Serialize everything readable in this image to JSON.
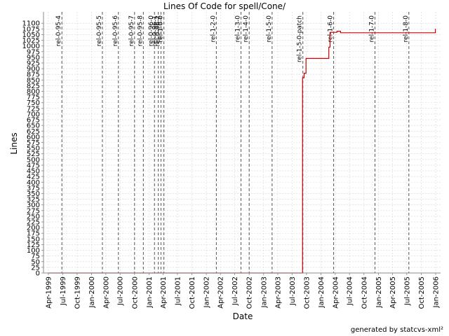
{
  "chart_data": {
    "type": "line",
    "title": "Lines Of Code for spell/Cone/",
    "xlabel": "Date",
    "ylabel": "Lines",
    "footer": "generated by statcvs-xml²",
    "xlim": [
      "1999-03-01",
      "2006-02-01"
    ],
    "ylim": [
      0,
      1150
    ],
    "y_ticks": [
      0,
      25,
      50,
      75,
      100,
      125,
      150,
      175,
      200,
      225,
      250,
      275,
      300,
      325,
      350,
      375,
      400,
      425,
      450,
      475,
      500,
      525,
      550,
      575,
      600,
      625,
      650,
      675,
      700,
      725,
      750,
      775,
      800,
      825,
      850,
      875,
      900,
      925,
      950,
      975,
      1000,
      1025,
      1050,
      1075,
      1100
    ],
    "x_ticks": [
      {
        "date": "1999-04-01",
        "label": "Apr-1999"
      },
      {
        "date": "1999-07-01",
        "label": "Jul-1999"
      },
      {
        "date": "1999-10-01",
        "label": "Oct-1999"
      },
      {
        "date": "2000-01-01",
        "label": "Jan-2000"
      },
      {
        "date": "2000-04-01",
        "label": "Apr-2000"
      },
      {
        "date": "2000-07-01",
        "label": "Jul-2000"
      },
      {
        "date": "2000-10-01",
        "label": "Oct-2000"
      },
      {
        "date": "2001-01-01",
        "label": "Jan-2001"
      },
      {
        "date": "2001-04-01",
        "label": "Apr-2001"
      },
      {
        "date": "2001-07-01",
        "label": "Jul-2001"
      },
      {
        "date": "2001-10-01",
        "label": "Oct-2001"
      },
      {
        "date": "2002-01-01",
        "label": "Jan-2002"
      },
      {
        "date": "2002-04-01",
        "label": "Apr-2002"
      },
      {
        "date": "2002-07-01",
        "label": "Jul-2002"
      },
      {
        "date": "2002-10-01",
        "label": "Oct-2002"
      },
      {
        "date": "2003-01-01",
        "label": "Jan-2003"
      },
      {
        "date": "2003-04-01",
        "label": "Apr-2003"
      },
      {
        "date": "2003-07-01",
        "label": "Jul-2003"
      },
      {
        "date": "2003-10-01",
        "label": "Oct-2003"
      },
      {
        "date": "2004-01-01",
        "label": "Jan-2004"
      },
      {
        "date": "2004-04-01",
        "label": "Apr-2004"
      },
      {
        "date": "2004-07-01",
        "label": "Jul-2004"
      },
      {
        "date": "2004-10-01",
        "label": "Oct-2004"
      },
      {
        "date": "2005-01-01",
        "label": "Jan-2005"
      },
      {
        "date": "2005-04-01",
        "label": "Apr-2005"
      },
      {
        "date": "2005-07-01",
        "label": "Jul-2005"
      },
      {
        "date": "2005-10-01",
        "label": "Oct-2005"
      },
      {
        "date": "2006-01-01",
        "label": "Jan-2006"
      }
    ],
    "markers": [
      {
        "date": "1999-06-26",
        "label": "rel-0-95-4"
      },
      {
        "date": "2000-03-10",
        "label": "rel-0-95-5"
      },
      {
        "date": "2000-06-20",
        "label": "rel-0-95-6"
      },
      {
        "date": "2000-10-01",
        "label": "rel-0-95-7"
      },
      {
        "date": "2000-11-26",
        "label": "rel-0-95-8"
      },
      {
        "date": "2001-02-05",
        "label": "rel-0-96-0"
      },
      {
        "date": "2001-03-01",
        "label": "rel-0-96-1"
      },
      {
        "date": "2001-03-18",
        "label": "rel-0-96-2"
      },
      {
        "date": "2001-04-06",
        "label": "rel-1-0-0"
      },
      {
        "date": "2002-03-06",
        "label": "rel-1-2-0"
      },
      {
        "date": "2002-08-10",
        "label": "rel-1-3-0"
      },
      {
        "date": "2002-10-01",
        "label": "rel-1-4-0"
      },
      {
        "date": "2003-02-24",
        "label": "rel-1-5-0"
      },
      {
        "date": "2003-09-08",
        "label": "rel-1-5-0-patch"
      },
      {
        "date": "2004-03-22",
        "label": "rel-1-6-0"
      },
      {
        "date": "2004-12-10",
        "label": "rel-1-7-0"
      },
      {
        "date": "2005-07-14",
        "label": "rel-1-8-0"
      }
    ],
    "series": [
      {
        "color": "#cc0000",
        "step": true,
        "points": [
          {
            "x": "1999-04-01",
            "y": 0
          },
          {
            "x": "2003-09-06",
            "y": 0
          },
          {
            "x": "2003-09-06",
            "y": 860
          },
          {
            "x": "2003-09-16",
            "y": 860
          },
          {
            "x": "2003-09-16",
            "y": 880
          },
          {
            "x": "2003-09-28",
            "y": 880
          },
          {
            "x": "2003-09-28",
            "y": 945
          },
          {
            "x": "2004-02-20",
            "y": 945
          },
          {
            "x": "2004-02-20",
            "y": 995
          },
          {
            "x": "2004-02-28",
            "y": 995
          },
          {
            "x": "2004-02-28",
            "y": 1060
          },
          {
            "x": "2004-04-12",
            "y": 1060
          },
          {
            "x": "2004-04-12",
            "y": 1065
          },
          {
            "x": "2004-05-05",
            "y": 1065
          },
          {
            "x": "2004-05-05",
            "y": 1058
          },
          {
            "x": "2005-12-30",
            "y": 1058
          },
          {
            "x": "2005-12-30",
            "y": 1075
          }
        ]
      }
    ]
  }
}
